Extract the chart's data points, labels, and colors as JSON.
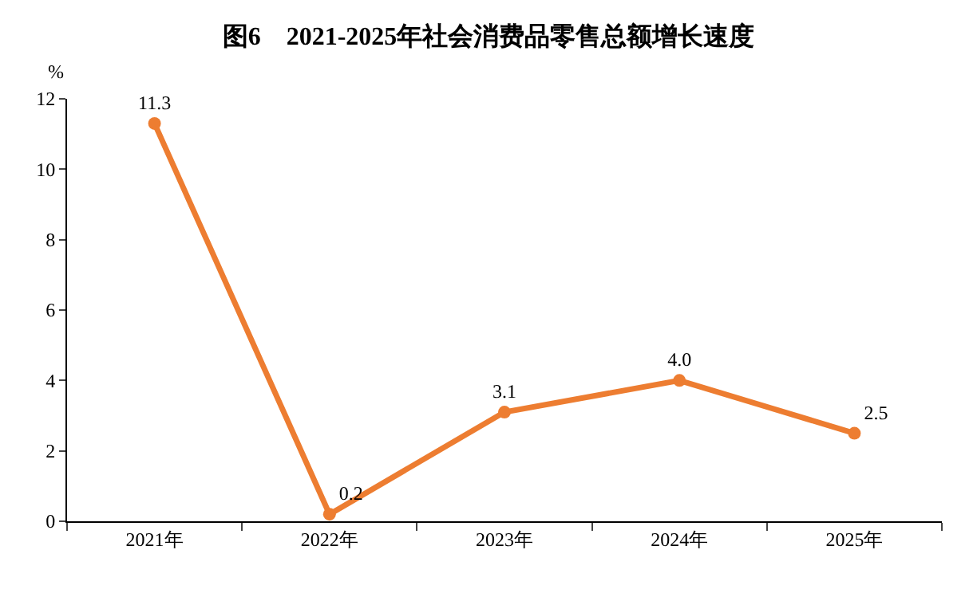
{
  "chart_data": {
    "type": "line",
    "title": "图6　2021-2025年社会消费品零售总额增长速度",
    "ylabel": "%",
    "categories": [
      "2021年",
      "2022年",
      "2023年",
      "2024年",
      "2025年"
    ],
    "series": [
      {
        "color": "#ed7d31",
        "values": [
          11.3,
          0.2,
          3.1,
          4.0,
          2.5
        ],
        "value_labels": [
          "11.3",
          "0.2",
          "3.1",
          "4.0",
          "2.5"
        ]
      }
    ],
    "ylim": [
      0,
      12
    ],
    "yticks": [
      0,
      2,
      4,
      6,
      8,
      10,
      12
    ],
    "grid": false,
    "marker": "circle",
    "line_style": "solid"
  }
}
